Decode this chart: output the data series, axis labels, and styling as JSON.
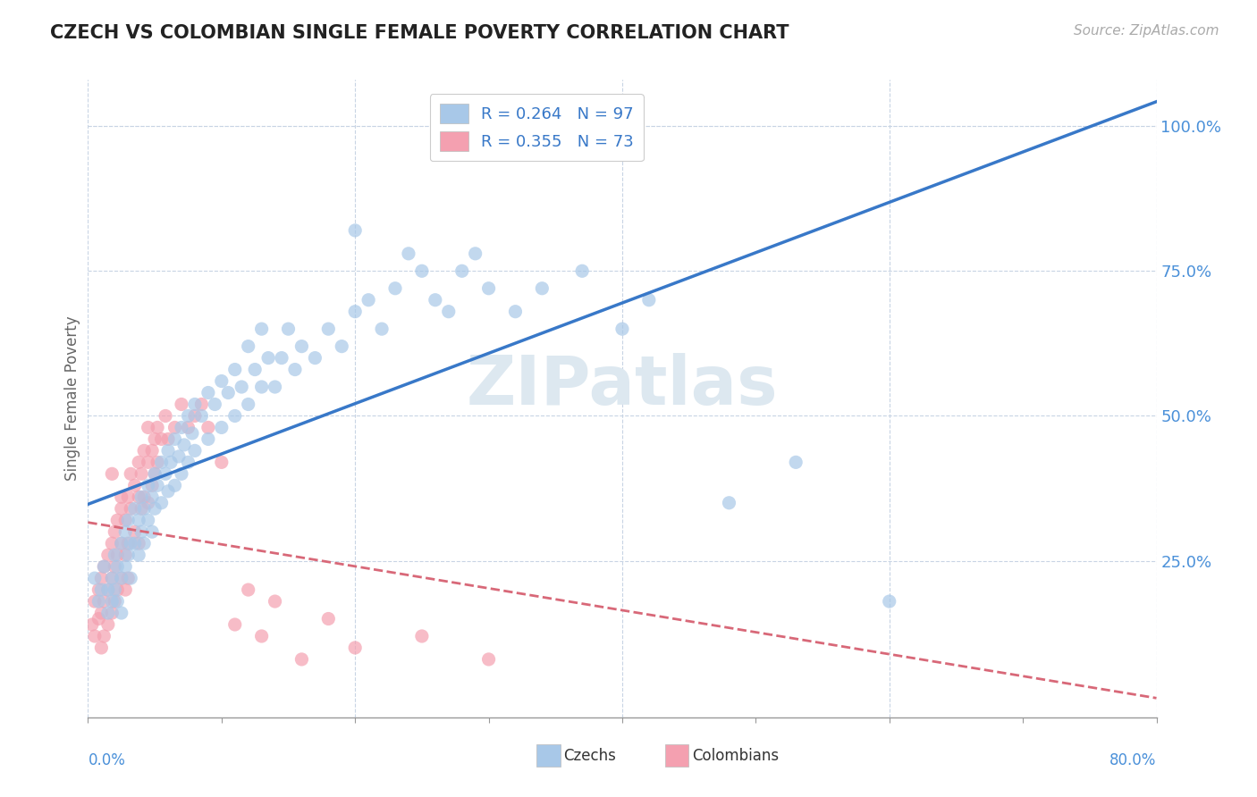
{
  "title": "CZECH VS COLOMBIAN SINGLE FEMALE POVERTY CORRELATION CHART",
  "source": "Source: ZipAtlas.com",
  "ylabel": "Single Female Poverty",
  "xlim": [
    0.0,
    0.8
  ],
  "ylim": [
    -0.02,
    1.08
  ],
  "ytick_labels_right": [
    "25.0%",
    "50.0%",
    "75.0%",
    "100.0%"
  ],
  "ytick_vals_right": [
    0.25,
    0.5,
    0.75,
    1.0
  ],
  "czech_color": "#a8c8e8",
  "colombian_color": "#f4a0b0",
  "czech_R": 0.264,
  "czech_N": 97,
  "colombian_R": 0.355,
  "colombian_N": 73,
  "trend_blue": "#3878c8",
  "trend_pink": "#d86878",
  "watermark_color": "#dde8f0",
  "background_color": "#ffffff",
  "grid_color": "#c8d4e4",
  "right_label_color": "#4a90d9",
  "bottom_label_color": "#4a90d9",
  "czech_scatter": [
    [
      0.005,
      0.22
    ],
    [
      0.008,
      0.18
    ],
    [
      0.01,
      0.2
    ],
    [
      0.012,
      0.24
    ],
    [
      0.015,
      0.2
    ],
    [
      0.015,
      0.16
    ],
    [
      0.018,
      0.22
    ],
    [
      0.018,
      0.18
    ],
    [
      0.02,
      0.26
    ],
    [
      0.02,
      0.2
    ],
    [
      0.022,
      0.24
    ],
    [
      0.022,
      0.18
    ],
    [
      0.025,
      0.28
    ],
    [
      0.025,
      0.22
    ],
    [
      0.025,
      0.16
    ],
    [
      0.028,
      0.3
    ],
    [
      0.028,
      0.24
    ],
    [
      0.03,
      0.32
    ],
    [
      0.03,
      0.26
    ],
    [
      0.032,
      0.28
    ],
    [
      0.032,
      0.22
    ],
    [
      0.035,
      0.34
    ],
    [
      0.035,
      0.28
    ],
    [
      0.038,
      0.32
    ],
    [
      0.038,
      0.26
    ],
    [
      0.04,
      0.36
    ],
    [
      0.04,
      0.3
    ],
    [
      0.042,
      0.34
    ],
    [
      0.042,
      0.28
    ],
    [
      0.045,
      0.38
    ],
    [
      0.045,
      0.32
    ],
    [
      0.048,
      0.36
    ],
    [
      0.048,
      0.3
    ],
    [
      0.05,
      0.4
    ],
    [
      0.05,
      0.34
    ],
    [
      0.052,
      0.38
    ],
    [
      0.055,
      0.42
    ],
    [
      0.055,
      0.35
    ],
    [
      0.058,
      0.4
    ],
    [
      0.06,
      0.44
    ],
    [
      0.06,
      0.37
    ],
    [
      0.062,
      0.42
    ],
    [
      0.065,
      0.46
    ],
    [
      0.065,
      0.38
    ],
    [
      0.068,
      0.43
    ],
    [
      0.07,
      0.48
    ],
    [
      0.07,
      0.4
    ],
    [
      0.072,
      0.45
    ],
    [
      0.075,
      0.5
    ],
    [
      0.075,
      0.42
    ],
    [
      0.078,
      0.47
    ],
    [
      0.08,
      0.52
    ],
    [
      0.08,
      0.44
    ],
    [
      0.085,
      0.5
    ],
    [
      0.09,
      0.54
    ],
    [
      0.09,
      0.46
    ],
    [
      0.095,
      0.52
    ],
    [
      0.1,
      0.56
    ],
    [
      0.1,
      0.48
    ],
    [
      0.105,
      0.54
    ],
    [
      0.11,
      0.58
    ],
    [
      0.11,
      0.5
    ],
    [
      0.115,
      0.55
    ],
    [
      0.12,
      0.62
    ],
    [
      0.12,
      0.52
    ],
    [
      0.125,
      0.58
    ],
    [
      0.13,
      0.65
    ],
    [
      0.13,
      0.55
    ],
    [
      0.135,
      0.6
    ],
    [
      0.14,
      0.55
    ],
    [
      0.145,
      0.6
    ],
    [
      0.15,
      0.65
    ],
    [
      0.155,
      0.58
    ],
    [
      0.16,
      0.62
    ],
    [
      0.17,
      0.6
    ],
    [
      0.18,
      0.65
    ],
    [
      0.19,
      0.62
    ],
    [
      0.2,
      0.68
    ],
    [
      0.2,
      0.82
    ],
    [
      0.21,
      0.7
    ],
    [
      0.22,
      0.65
    ],
    [
      0.23,
      0.72
    ],
    [
      0.24,
      0.78
    ],
    [
      0.25,
      0.75
    ],
    [
      0.26,
      0.7
    ],
    [
      0.27,
      0.68
    ],
    [
      0.28,
      0.75
    ],
    [
      0.29,
      0.78
    ],
    [
      0.3,
      0.72
    ],
    [
      0.32,
      0.68
    ],
    [
      0.34,
      0.72
    ],
    [
      0.37,
      0.75
    ],
    [
      0.4,
      0.65
    ],
    [
      0.42,
      0.7
    ],
    [
      0.48,
      0.35
    ],
    [
      0.53,
      0.42
    ],
    [
      0.6,
      0.18
    ]
  ],
  "colombian_scatter": [
    [
      0.003,
      0.14
    ],
    [
      0.005,
      0.18
    ],
    [
      0.005,
      0.12
    ],
    [
      0.008,
      0.2
    ],
    [
      0.008,
      0.15
    ],
    [
      0.01,
      0.22
    ],
    [
      0.01,
      0.16
    ],
    [
      0.01,
      0.1
    ],
    [
      0.012,
      0.24
    ],
    [
      0.012,
      0.18
    ],
    [
      0.012,
      0.12
    ],
    [
      0.015,
      0.26
    ],
    [
      0.015,
      0.2
    ],
    [
      0.015,
      0.14
    ],
    [
      0.018,
      0.28
    ],
    [
      0.018,
      0.22
    ],
    [
      0.018,
      0.16
    ],
    [
      0.018,
      0.4
    ],
    [
      0.02,
      0.3
    ],
    [
      0.02,
      0.24
    ],
    [
      0.02,
      0.18
    ],
    [
      0.022,
      0.32
    ],
    [
      0.022,
      0.26
    ],
    [
      0.022,
      0.2
    ],
    [
      0.025,
      0.34
    ],
    [
      0.025,
      0.28
    ],
    [
      0.025,
      0.22
    ],
    [
      0.025,
      0.36
    ],
    [
      0.028,
      0.32
    ],
    [
      0.028,
      0.26
    ],
    [
      0.028,
      0.2
    ],
    [
      0.03,
      0.36
    ],
    [
      0.03,
      0.28
    ],
    [
      0.03,
      0.22
    ],
    [
      0.032,
      0.34
    ],
    [
      0.032,
      0.4
    ],
    [
      0.035,
      0.38
    ],
    [
      0.035,
      0.3
    ],
    [
      0.038,
      0.36
    ],
    [
      0.038,
      0.42
    ],
    [
      0.038,
      0.28
    ],
    [
      0.04,
      0.4
    ],
    [
      0.04,
      0.34
    ],
    [
      0.042,
      0.44
    ],
    [
      0.042,
      0.36
    ],
    [
      0.045,
      0.42
    ],
    [
      0.045,
      0.48
    ],
    [
      0.045,
      0.35
    ],
    [
      0.048,
      0.44
    ],
    [
      0.048,
      0.38
    ],
    [
      0.05,
      0.46
    ],
    [
      0.05,
      0.4
    ],
    [
      0.052,
      0.48
    ],
    [
      0.052,
      0.42
    ],
    [
      0.055,
      0.46
    ],
    [
      0.058,
      0.5
    ],
    [
      0.06,
      0.46
    ],
    [
      0.065,
      0.48
    ],
    [
      0.07,
      0.52
    ],
    [
      0.075,
      0.48
    ],
    [
      0.08,
      0.5
    ],
    [
      0.085,
      0.52
    ],
    [
      0.09,
      0.48
    ],
    [
      0.1,
      0.42
    ],
    [
      0.11,
      0.14
    ],
    [
      0.12,
      0.2
    ],
    [
      0.13,
      0.12
    ],
    [
      0.14,
      0.18
    ],
    [
      0.16,
      0.08
    ],
    [
      0.18,
      0.15
    ],
    [
      0.2,
      0.1
    ],
    [
      0.25,
      0.12
    ],
    [
      0.3,
      0.08
    ]
  ]
}
